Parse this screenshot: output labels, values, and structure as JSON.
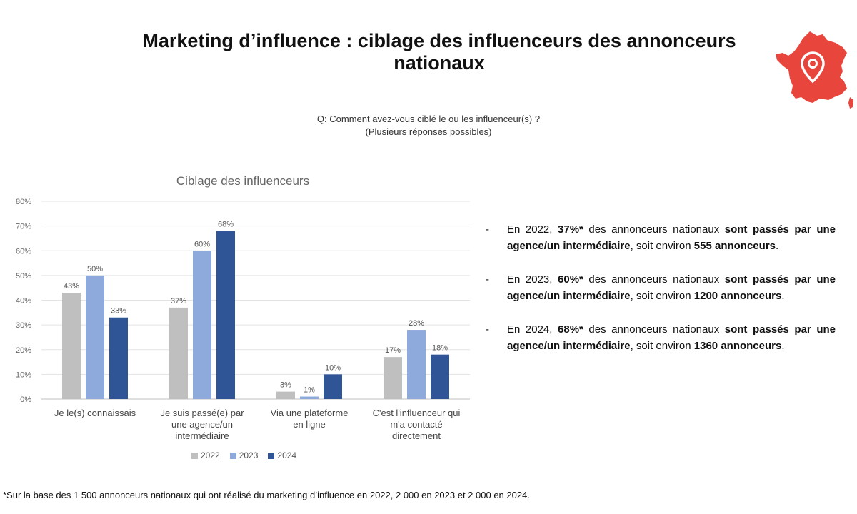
{
  "page": {
    "title_line1": "Marketing d’influence : ciblage des influenceurs des annonceurs",
    "title_line2": "nationaux",
    "question_line1": "Q: Comment avez-vous ciblé le ou les influenceur(s) ?",
    "question_line2": "(Plusieurs réponses possibles)",
    "footnote": "*Sur la base des 1 500 annonceurs nationaux qui ont réalisé du marketing d’influence en 2022, 2 000 en 2023 et 2 000 en 2024.",
    "map_icon": "france-map-location-pin-icon",
    "map_color": "#E8453C"
  },
  "bullets": [
    {
      "dash": "-",
      "p1": "En 2022, ",
      "b1": "37%*",
      "p2": " des annonceurs nationaux ",
      "b2": "sont passés par une agence/un intermédiaire",
      "p3": ", soit environ ",
      "b3": "555 annonceurs",
      "p4": "."
    },
    {
      "dash": "-",
      "p1": "En 2023, ",
      "b1": "60%*",
      "p2": " des annonceurs nationaux ",
      "b2": "sont passés par une agence/un intermédiaire",
      "p3": ", soit environ ",
      "b3": "1200 annonceurs",
      "p4": "."
    },
    {
      "dash": "-",
      "p1": "En 2024, ",
      "b1": "68%*",
      "p2": " des annonceurs nationaux ",
      "b2": "sont passés par une agence/un intermédiaire",
      "p3": ", soit environ ",
      "b3": "1360 annonceurs",
      "p4": "."
    }
  ],
  "chart_data": {
    "type": "bar",
    "title": "Ciblage des influenceurs",
    "categories": [
      [
        "Je le(s) connaissais"
      ],
      [
        "Je suis passé(e) par",
        "une agence/un",
        "intermédiaire"
      ],
      [
        "Via une plateforme",
        "en ligne"
      ],
      [
        "C'est l'influenceur qui",
        "m'a contacté",
        "directement"
      ]
    ],
    "series": [
      {
        "name": "2022",
        "color": "#BFBFBF",
        "values": [
          43,
          37,
          3,
          17
        ]
      },
      {
        "name": "2023",
        "color": "#8EA9DB",
        "values": [
          50,
          60,
          1,
          28
        ]
      },
      {
        "name": "2024",
        "color": "#2F5597",
        "values": [
          33,
          68,
          10,
          18
        ]
      }
    ],
    "ylim": [
      0,
      80
    ],
    "yticks": [
      0,
      10,
      20,
      30,
      40,
      50,
      60,
      70,
      80
    ],
    "ytick_suffix": "%",
    "value_suffix": "%",
    "grid": true,
    "legend": "bottom"
  }
}
